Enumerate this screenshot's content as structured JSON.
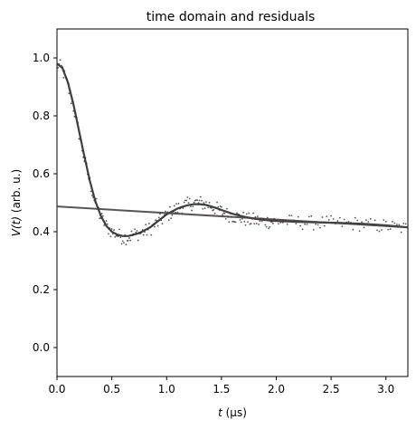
{
  "chart_data": {
    "type": "scatter",
    "title": "time domain and residuals",
    "xlabel_parts": [
      "t",
      " (µs)"
    ],
    "ylabel_parts": [
      "V(t)",
      " (arb. u.)"
    ],
    "xlim": [
      0.0,
      3.2
    ],
    "ylim": [
      -0.1,
      1.1
    ],
    "x_ticks": [
      0.0,
      0.5,
      1.0,
      1.5,
      2.0,
      2.5,
      3.0
    ],
    "x_tick_labels": [
      "0.0",
      "0.5",
      "1.0",
      "1.5",
      "2.0",
      "2.5",
      "3.0"
    ],
    "y_ticks": [
      0.0,
      0.2,
      0.4,
      0.6,
      0.8,
      1.0
    ],
    "y_tick_labels": [
      "0.0",
      "0.2",
      "0.4",
      "0.6",
      "0.8",
      "1.0"
    ],
    "grid": false,
    "legend": "none",
    "series": [
      {
        "kind": "scatter",
        "color": "#555555",
        "note_points_approx": "dense noisy data following fit curve",
        "x": [
          0.0,
          0.05,
          0.1,
          0.15,
          0.2,
          0.25,
          0.3,
          0.35,
          0.4,
          0.45,
          0.5,
          0.55,
          0.6,
          0.65,
          0.7,
          0.75,
          0.8,
          0.85,
          0.9,
          0.95,
          1.0,
          1.05,
          1.1,
          1.15,
          1.2,
          1.25,
          1.3,
          1.35,
          1.4,
          1.45,
          1.5,
          1.55,
          1.6,
          1.65,
          1.7,
          1.75,
          1.8,
          1.85,
          1.9,
          1.95,
          2.0,
          2.1,
          2.2,
          2.3,
          2.4,
          2.5,
          2.6,
          2.7,
          2.8,
          2.9,
          3.0,
          3.1,
          3.2
        ],
        "y": [
          0.98,
          0.96,
          0.9,
          0.83,
          0.74,
          0.65,
          0.57,
          0.5,
          0.45,
          0.42,
          0.4,
          0.39,
          0.38,
          0.38,
          0.39,
          0.395,
          0.4,
          0.41,
          0.425,
          0.44,
          0.455,
          0.47,
          0.48,
          0.49,
          0.495,
          0.5,
          0.5,
          0.495,
          0.49,
          0.48,
          0.47,
          0.46,
          0.455,
          0.45,
          0.445,
          0.44,
          0.44,
          0.435,
          0.435,
          0.435,
          0.435,
          0.435,
          0.432,
          0.43,
          0.43,
          0.43,
          0.428,
          0.428,
          0.425,
          0.42,
          0.42,
          0.415,
          0.41
        ]
      },
      {
        "kind": "line",
        "color": "#2a2a2a",
        "x": [
          0.0,
          0.05,
          0.1,
          0.15,
          0.2,
          0.25,
          0.3,
          0.35,
          0.4,
          0.45,
          0.5,
          0.55,
          0.6,
          0.65,
          0.7,
          0.75,
          0.8,
          0.85,
          0.9,
          0.95,
          1.0,
          1.05,
          1.1,
          1.15,
          1.2,
          1.25,
          1.3,
          1.35,
          1.4,
          1.45,
          1.5,
          1.6,
          1.7,
          1.8,
          1.9,
          2.0,
          2.2,
          2.4,
          2.6,
          2.8,
          3.0,
          3.2
        ],
        "y": [
          0.98,
          0.965,
          0.915,
          0.84,
          0.75,
          0.66,
          0.575,
          0.505,
          0.455,
          0.42,
          0.4,
          0.39,
          0.385,
          0.385,
          0.39,
          0.395,
          0.405,
          0.415,
          0.43,
          0.445,
          0.46,
          0.47,
          0.48,
          0.487,
          0.492,
          0.495,
          0.495,
          0.493,
          0.488,
          0.482,
          0.475,
          0.462,
          0.452,
          0.445,
          0.44,
          0.437,
          0.434,
          0.432,
          0.43,
          0.427,
          0.422,
          0.415
        ]
      },
      {
        "kind": "line",
        "color": "#4a4040",
        "x": [
          0.0,
          3.2
        ],
        "y": [
          0.487,
          0.415
        ]
      }
    ]
  }
}
